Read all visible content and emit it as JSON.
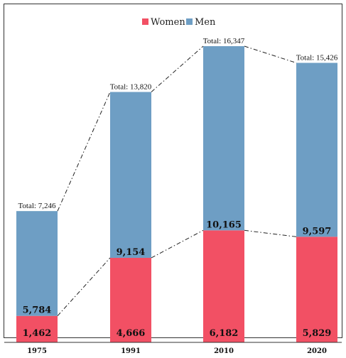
{
  "chart_data": {
    "type": "bar",
    "stacked": true,
    "categories": [
      "1975",
      "1991",
      "2010",
      "2020"
    ],
    "series": [
      {
        "name": "Women",
        "values": [
          1462,
          4666,
          6182,
          5829
        ],
        "color": "#f25064"
      },
      {
        "name": "Men",
        "values": [
          5784,
          9154,
          10165,
          9597
        ],
        "color": "#6e9ec4"
      }
    ],
    "totals": [
      7246,
      13820,
      16347,
      15426
    ],
    "total_labels": [
      "Total: 7,246",
      "Total: 13,820",
      "Total: 16,347",
      "Total: 15,426"
    ],
    "value_labels_women": [
      "1,462",
      "4,666",
      "6,182",
      "5,829"
    ],
    "value_labels_men": [
      "5,784",
      "9,154",
      "10,165",
      "9,597"
    ],
    "legend": {
      "position": "top-center",
      "items": [
        "Women",
        "Men"
      ]
    },
    "ylim": [
      0,
      16347
    ],
    "grid": false,
    "connector_lines": true,
    "title": "",
    "xlabel": "",
    "ylabel": ""
  }
}
